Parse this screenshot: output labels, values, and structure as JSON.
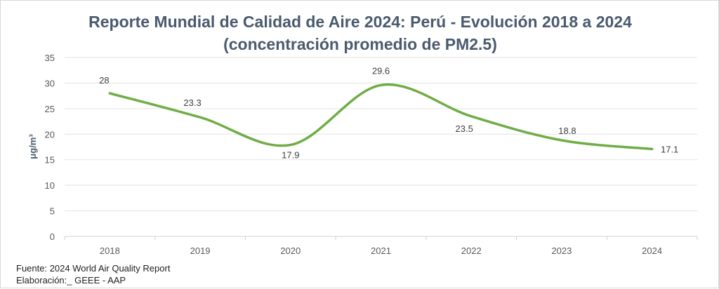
{
  "chart_data": {
    "type": "line",
    "title_line1": "Reporte Mundial de Calidad de Aire 2024: Perú - Evolución 2018 a 2024",
    "title_line2": "(concentración promedio de PM2.5)",
    "ylabel": "μg/m³",
    "xlabel": "",
    "categories": [
      "2018",
      "2019",
      "2020",
      "2021",
      "2022",
      "2023",
      "2024"
    ],
    "series": [
      {
        "values": [
          28,
          23.3,
          17.9,
          29.6,
          23.5,
          18.8,
          17.1
        ],
        "color": "#70ad47"
      }
    ],
    "data_labels": [
      "28",
      "23.3",
      "17.9",
      "29.6",
      "23.5",
      "18.8",
      "17.1"
    ],
    "ylim": [
      0,
      35
    ],
    "yticks": [
      "0",
      "5",
      "10",
      "15",
      "20",
      "25",
      "30",
      "35"
    ],
    "grid": true,
    "smooth": true
  },
  "footer": {
    "source": "Fuente: 2024 World Air Quality  Report",
    "credits": "Elaboración:_ GEEE - AAP"
  }
}
